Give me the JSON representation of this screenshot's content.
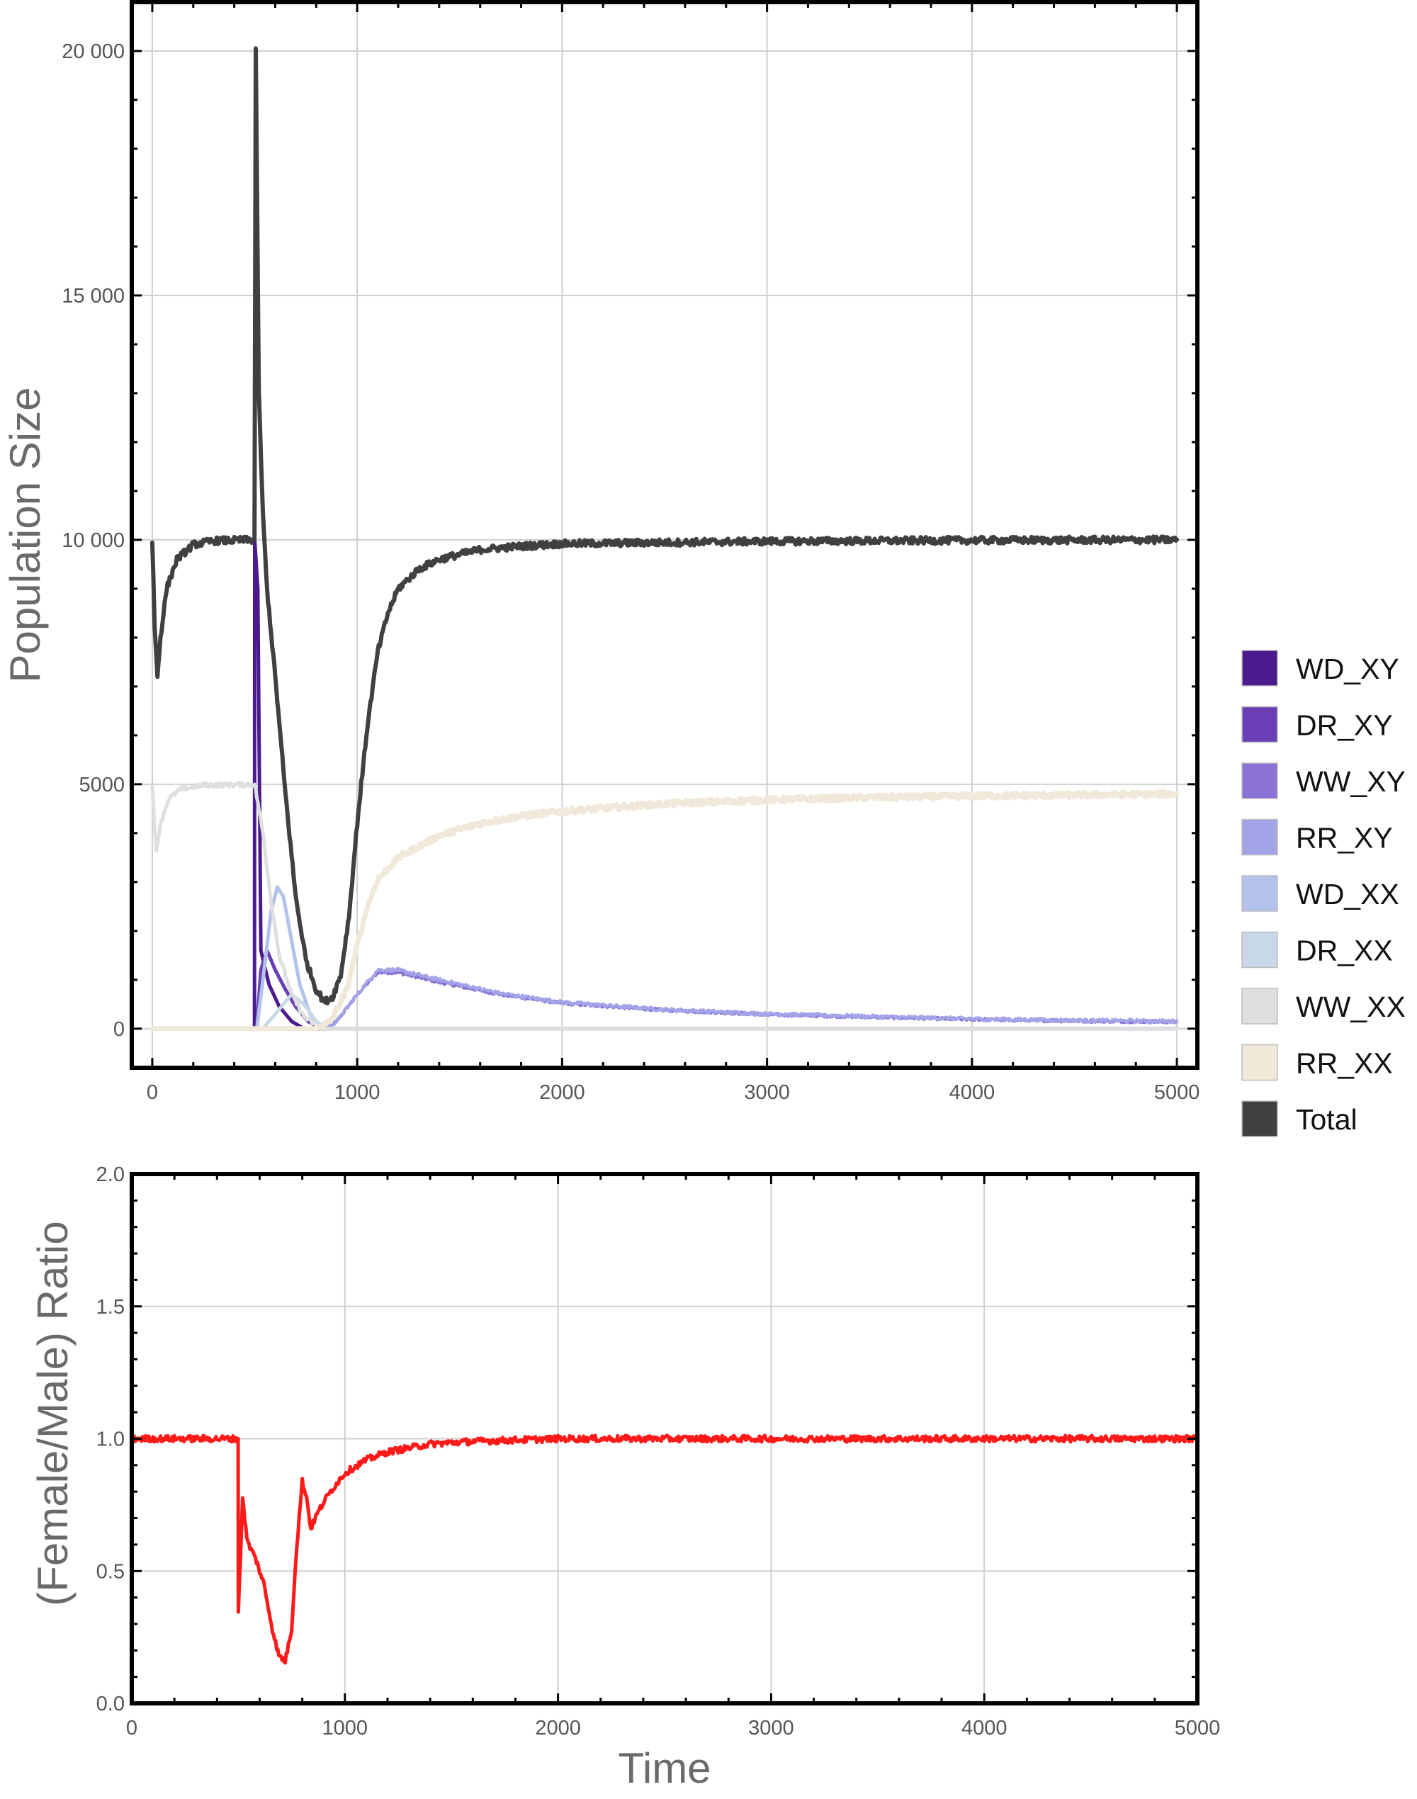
{
  "chart_data": [
    {
      "type": "line",
      "ylabel": "Population Size",
      "xlabel": "",
      "xlim": [
        -100,
        5100
      ],
      "ylim": [
        -800,
        21000
      ],
      "x_ticks": [
        0,
        1000,
        2000,
        3000,
        4000,
        5000
      ],
      "x_tick_labels": [
        "0",
        "1000",
        "2000",
        "3000",
        "4000",
        "5000"
      ],
      "y_ticks": [
        0,
        5000,
        10000,
        15000,
        20000
      ],
      "y_tick_labels": [
        "0",
        "5000",
        "10 000",
        "15 000",
        "20 000"
      ],
      "grid": true,
      "legend": "right",
      "series": [
        {
          "name": "WD_XY",
          "color": "#4b1a8c",
          "width": 5,
          "noise": 0,
          "points": [
            [
              0,
              0
            ],
            [
              499,
              0
            ],
            [
              500,
              10000
            ],
            [
              515,
              9000
            ],
            [
              530,
              1600
            ],
            [
              570,
              900
            ],
            [
              620,
              450
            ],
            [
              680,
              150
            ],
            [
              740,
              0
            ],
            [
              5000,
              0
            ]
          ]
        },
        {
          "name": "DR_XY",
          "color": "#6a3fb5",
          "width": 5,
          "noise": 0,
          "points": [
            [
              0,
              0
            ],
            [
              510,
              0
            ],
            [
              530,
              1200
            ],
            [
              560,
              1600
            ],
            [
              600,
              1200
            ],
            [
              650,
              800
            ],
            [
              700,
              450
            ],
            [
              760,
              150
            ],
            [
              820,
              0
            ],
            [
              5000,
              0
            ]
          ]
        },
        {
          "name": "WW_XY",
          "color": "#8a72d6",
          "width": 4,
          "noise": 30,
          "points": [
            [
              0,
              0
            ],
            [
              850,
              0
            ],
            [
              900,
              150
            ],
            [
              1000,
              700
            ],
            [
              1100,
              1150
            ],
            [
              1200,
              1150
            ],
            [
              1400,
              950
            ],
            [
              1700,
              700
            ],
            [
              2000,
              520
            ],
            [
              2500,
              380
            ],
            [
              3000,
              290
            ],
            [
              3500,
              240
            ],
            [
              4000,
              190
            ],
            [
              4500,
              160
            ],
            [
              5000,
              140
            ]
          ]
        },
        {
          "name": "RR_XY",
          "color": "#a3a3e8",
          "width": 4,
          "noise": 35,
          "points": [
            [
              0,
              0
            ],
            [
              850,
              0
            ],
            [
              900,
              150
            ],
            [
              1000,
              700
            ],
            [
              1100,
              1200
            ],
            [
              1200,
              1200
            ],
            [
              1400,
              1000
            ],
            [
              1700,
              720
            ],
            [
              2000,
              540
            ],
            [
              2500,
              390
            ],
            [
              3000,
              300
            ],
            [
              3500,
              250
            ],
            [
              4000,
              200
            ],
            [
              4500,
              170
            ],
            [
              5000,
              150
            ]
          ]
        },
        {
          "name": "WD_XX",
          "color": "#b3c2ea",
          "width": 5,
          "noise": 0,
          "points": [
            [
              0,
              0
            ],
            [
              510,
              0
            ],
            [
              540,
              1000
            ],
            [
              580,
              2400
            ],
            [
              610,
              2900
            ],
            [
              640,
              2700
            ],
            [
              680,
              1800
            ],
            [
              720,
              900
            ],
            [
              770,
              300
            ],
            [
              820,
              0
            ],
            [
              5000,
              0
            ]
          ]
        },
        {
          "name": "DR_XX",
          "color": "#c8d8e8",
          "width": 5,
          "noise": 0,
          "points": [
            [
              0,
              0
            ],
            [
              540,
              0
            ],
            [
              600,
              300
            ],
            [
              680,
              700
            ],
            [
              740,
              500
            ],
            [
              800,
              150
            ],
            [
              850,
              0
            ],
            [
              5000,
              0
            ]
          ]
        },
        {
          "name": "WW_XX",
          "color": "#dde0de",
          "width": 5,
          "noise": 45,
          "points": [
            [
              0,
              4950
            ],
            [
              20,
              3600
            ],
            [
              40,
              4200
            ],
            [
              80,
              4700
            ],
            [
              140,
              4900
            ],
            [
              250,
              4980
            ],
            [
              500,
              5000
            ],
            [
              540,
              4000
            ],
            [
              580,
              2600
            ],
            [
              620,
              1500
            ],
            [
              680,
              700
            ],
            [
              740,
              250
            ],
            [
              800,
              60
            ],
            [
              850,
              0
            ],
            [
              5000,
              0
            ]
          ]
        },
        {
          "name": "RR_XX",
          "color": "#f0e8d8",
          "width": 7,
          "noise": 55,
          "points": [
            [
              0,
              0
            ],
            [
              800,
              0
            ],
            [
              870,
              150
            ],
            [
              950,
              800
            ],
            [
              1000,
              1700
            ],
            [
              1050,
              2500
            ],
            [
              1100,
              3050
            ],
            [
              1200,
              3500
            ],
            [
              1400,
              3950
            ],
            [
              1600,
              4200
            ],
            [
              1800,
              4350
            ],
            [
              2000,
              4450
            ],
            [
              2500,
              4600
            ],
            [
              3000,
              4680
            ],
            [
              3500,
              4730
            ],
            [
              4000,
              4760
            ],
            [
              4500,
              4780
            ],
            [
              5000,
              4800
            ]
          ]
        },
        {
          "name": "Total",
          "color": "#404040",
          "width": 6,
          "noise": 70,
          "points": [
            [
              0,
              9990
            ],
            [
              12,
              8200
            ],
            [
              25,
              7200
            ],
            [
              40,
              8000
            ],
            [
              70,
              9000
            ],
            [
              120,
              9600
            ],
            [
              200,
              9900
            ],
            [
              300,
              9980
            ],
            [
              499,
              10000
            ],
            [
              505,
              20000
            ],
            [
              520,
              13000
            ],
            [
              540,
              10500
            ],
            [
              560,
              9000
            ],
            [
              600,
              7200
            ],
            [
              650,
              4800
            ],
            [
              700,
              2700
            ],
            [
              750,
              1400
            ],
            [
              800,
              800
            ],
            [
              840,
              550
            ],
            [
              880,
              650
            ],
            [
              920,
              1100
            ],
            [
              960,
              2300
            ],
            [
              1000,
              4200
            ],
            [
              1050,
              6200
            ],
            [
              1100,
              7700
            ],
            [
              1150,
              8500
            ],
            [
              1200,
              9000
            ],
            [
              1300,
              9400
            ],
            [
              1400,
              9600
            ],
            [
              1600,
              9800
            ],
            [
              1800,
              9870
            ],
            [
              2000,
              9920
            ],
            [
              3000,
              9970
            ],
            [
              4000,
              9990
            ],
            [
              5000,
              10000
            ]
          ]
        }
      ]
    },
    {
      "type": "line",
      "xlabel": "Time",
      "ylabel": "(Female/Male) Ratio",
      "xlim": [
        0,
        5000
      ],
      "ylim": [
        0,
        2.0
      ],
      "x_ticks": [
        0,
        1000,
        2000,
        3000,
        4000,
        5000
      ],
      "x_tick_labels": [
        "0",
        "1000",
        "2000",
        "3000",
        "4000",
        "5000"
      ],
      "y_ticks": [
        0,
        0.5,
        1.0,
        1.5,
        2.0
      ],
      "y_tick_labels": [
        "0.0",
        "0.5",
        "1.0",
        "1.5",
        "2.0"
      ],
      "grid": true,
      "series": [
        {
          "name": "",
          "color": "#ff1a1a",
          "width": 5,
          "noise": 0.012,
          "points": [
            [
              0,
              1.0
            ],
            [
              499,
              1.0
            ],
            [
              500,
              0.35
            ],
            [
              510,
              0.55
            ],
            [
              520,
              0.78
            ],
            [
              540,
              0.62
            ],
            [
              560,
              0.58
            ],
            [
              580,
              0.55
            ],
            [
              620,
              0.45
            ],
            [
              660,
              0.28
            ],
            [
              690,
              0.18
            ],
            [
              720,
              0.16
            ],
            [
              750,
              0.28
            ],
            [
              770,
              0.55
            ],
            [
              800,
              0.84
            ],
            [
              820,
              0.78
            ],
            [
              840,
              0.66
            ],
            [
              860,
              0.7
            ],
            [
              900,
              0.76
            ],
            [
              950,
              0.82
            ],
            [
              1000,
              0.87
            ],
            [
              1100,
              0.92
            ],
            [
              1200,
              0.95
            ],
            [
              1400,
              0.98
            ],
            [
              1600,
              0.99
            ],
            [
              2000,
              1.0
            ],
            [
              5000,
              1.0
            ]
          ]
        }
      ]
    }
  ],
  "colors": {
    "grid": "#cfcfcf",
    "frame": "#000000",
    "tick_text": "#555555",
    "axis_title": "#6a6a6a"
  }
}
